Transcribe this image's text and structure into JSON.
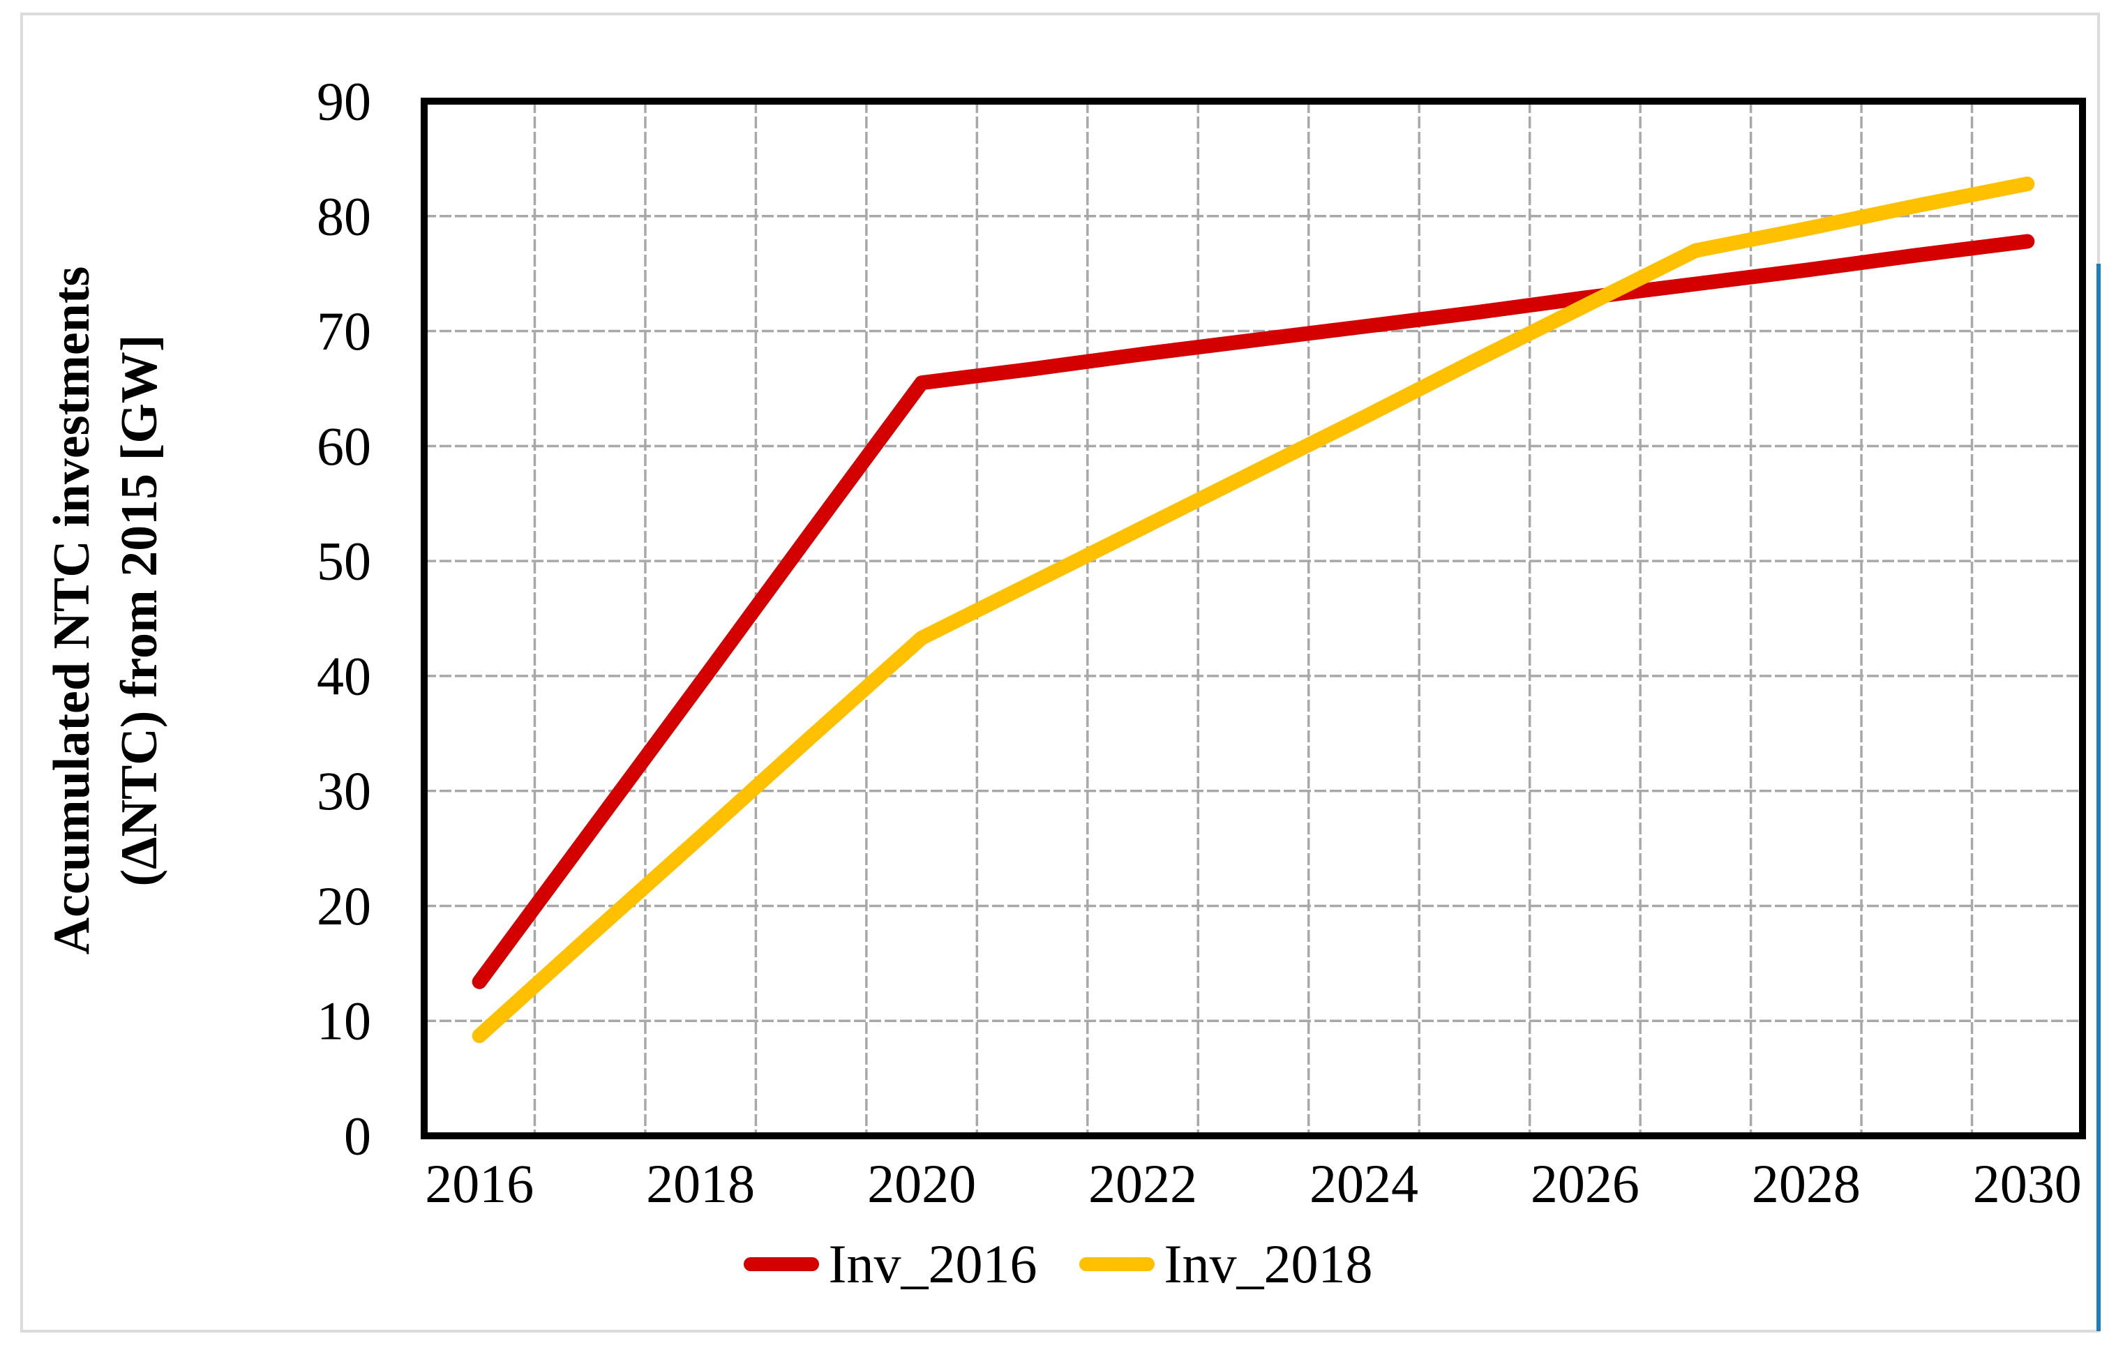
{
  "chart_data": {
    "type": "line",
    "x": [
      2016,
      2017,
      2018,
      2019,
      2020,
      2021,
      2022,
      2023,
      2024,
      2025,
      2026,
      2027,
      2028,
      2029,
      2030
    ],
    "series": [
      {
        "name": "Inv_2016",
        "color": "#D40000",
        "values": [
          13.4,
          26.4,
          39.4,
          52.5,
          65.5,
          66.7,
          68.0,
          69.2,
          70.4,
          71.6,
          72.9,
          74.1,
          75.3,
          76.6,
          77.8
        ]
      },
      {
        "name": "Inv_2018",
        "color": "#FFC000",
        "values": [
          8.7,
          17.4,
          26.0,
          34.7,
          43.3,
          48.1,
          52.9,
          57.7,
          62.5,
          67.4,
          72.2,
          77.0,
          78.9,
          80.9,
          82.8
        ]
      }
    ],
    "title": "",
    "xlabel": "",
    "ylabel_line1": "Accumulated NTC investments",
    "ylabel_line2": "(ΔNTC) from 2015 [GW]",
    "ylim": [
      0,
      90
    ],
    "ytick_step": 10,
    "ytick_labels": [
      "0",
      "10",
      "20",
      "30",
      "40",
      "50",
      "60",
      "70",
      "80",
      "90"
    ],
    "xtick_years": [
      2016,
      2018,
      2020,
      2022,
      2024,
      2026,
      2028,
      2030
    ],
    "xtick_labels": [
      "2016",
      "2018",
      "2020",
      "2022",
      "2024",
      "2026",
      "2028",
      "2030"
    ],
    "xlim_category": [
      2015.5,
      2030.5
    ],
    "grid": "on",
    "grid_style": "dashed",
    "legend_position": "bottom"
  },
  "legend": {
    "items": [
      {
        "label": "Inv_2016",
        "color": "#D40000"
      },
      {
        "label": "Inv_2018",
        "color": "#FFC000"
      }
    ]
  },
  "colors": {
    "series_red": "#D40000",
    "series_yellow": "#FFC000",
    "grid": "#A8A8A8",
    "plot_border": "#000000",
    "outer_frame": "#DBDBDB",
    "right_accent_line": "#1E7CC2",
    "background": "#FFFFFF"
  }
}
